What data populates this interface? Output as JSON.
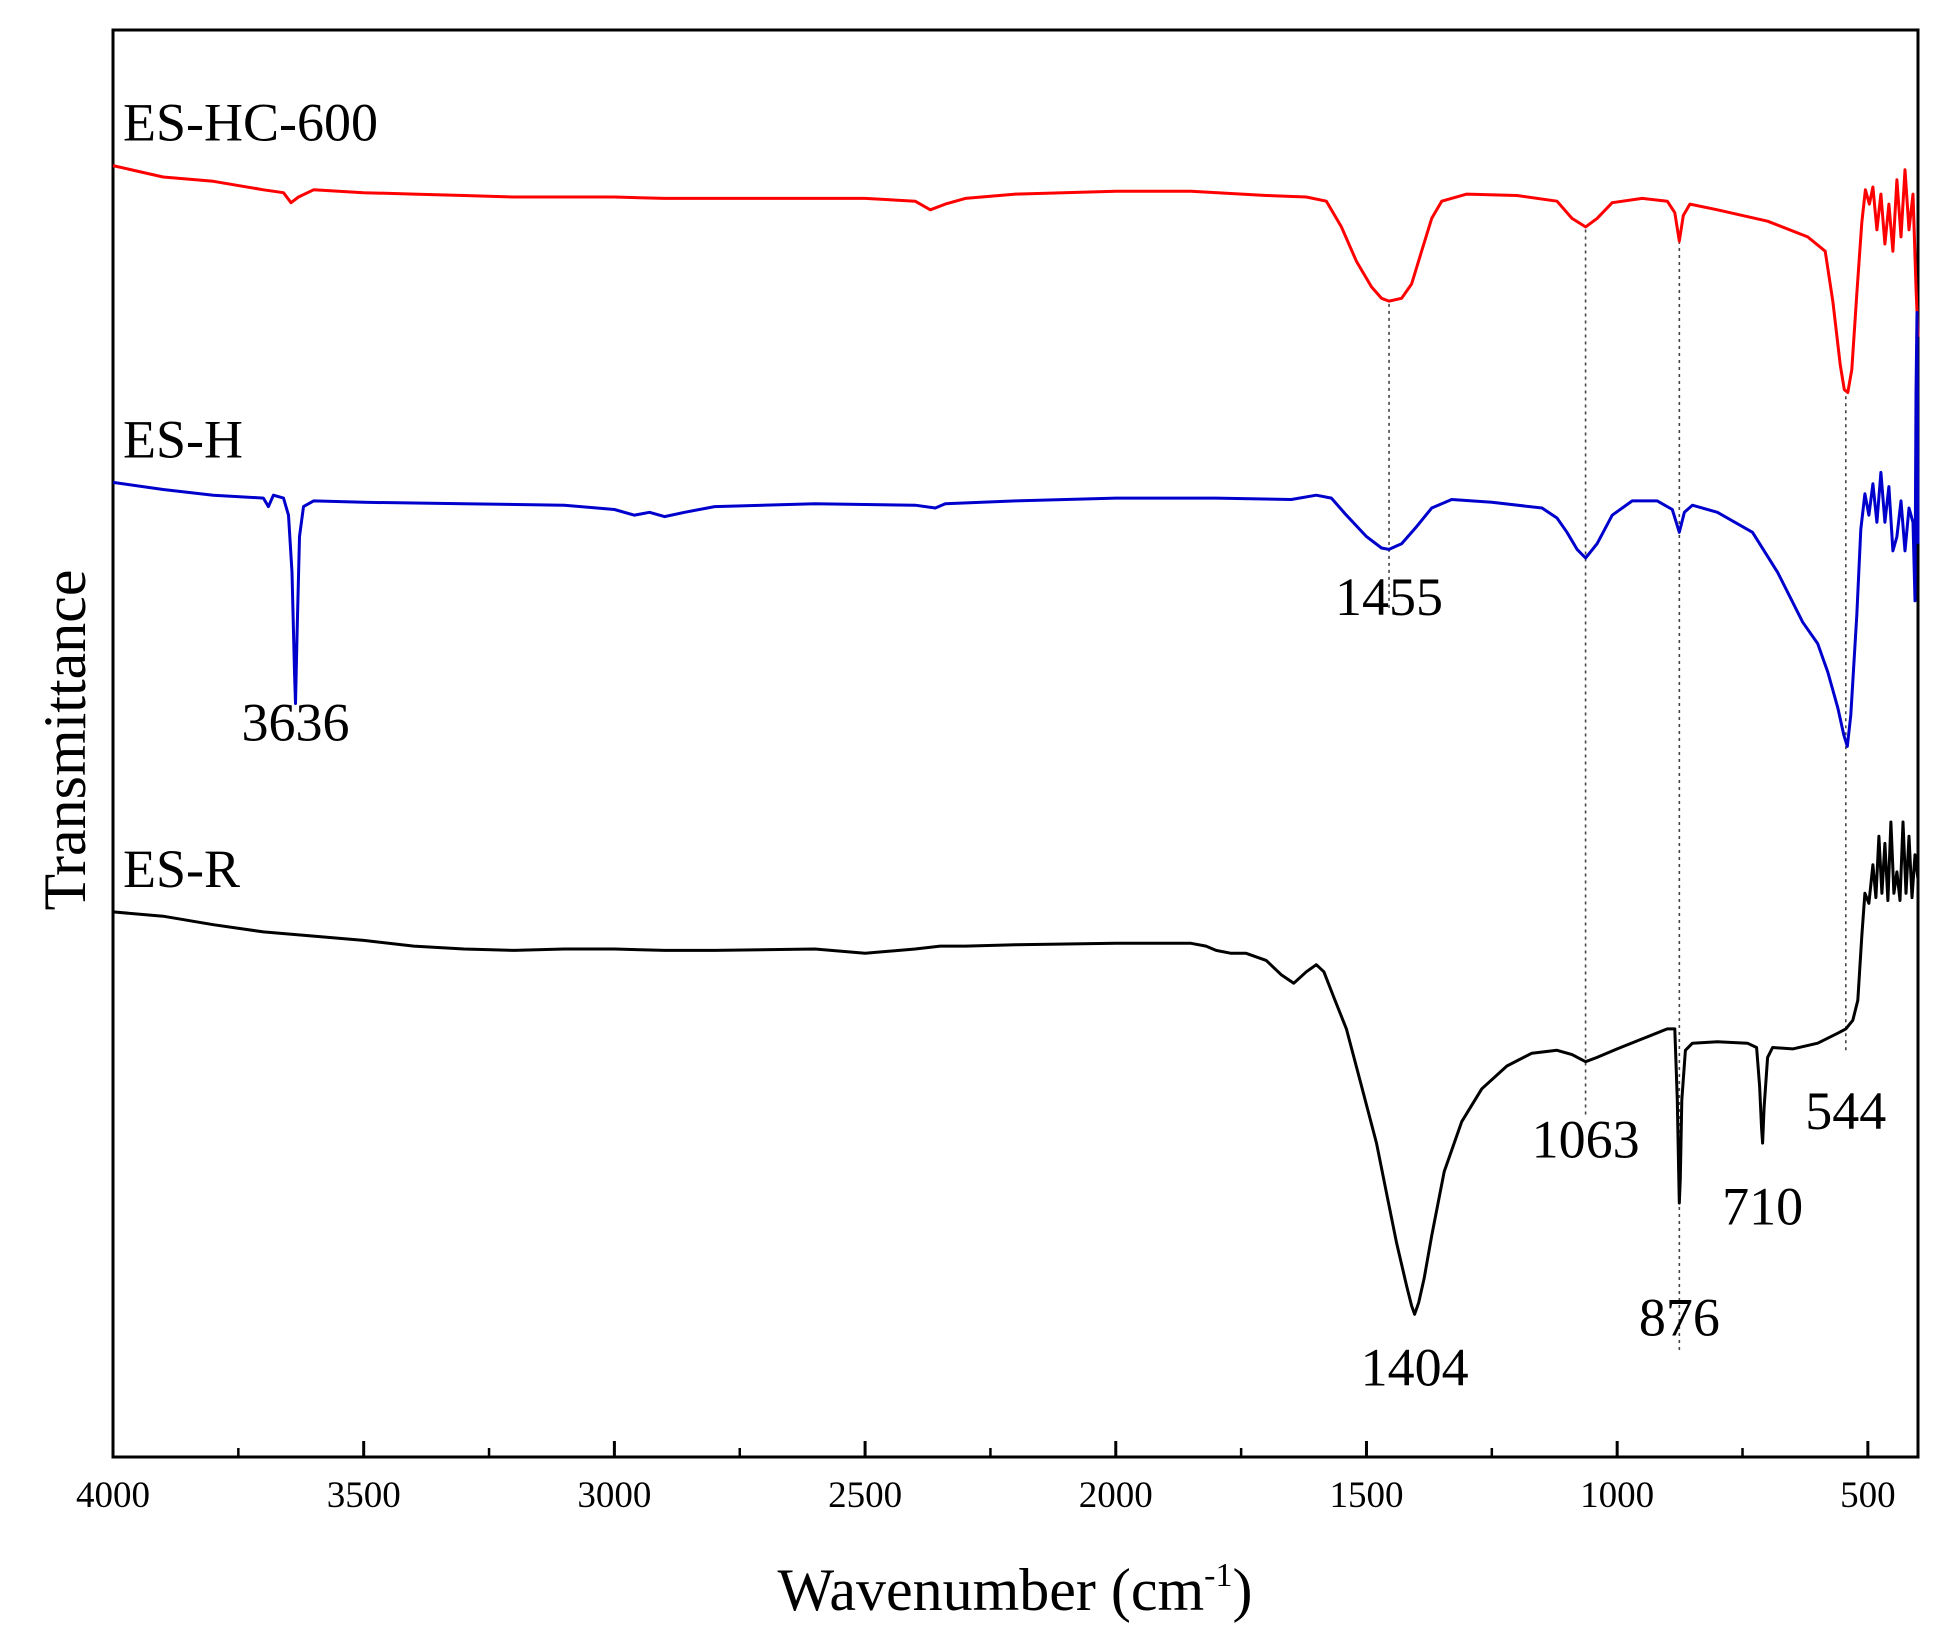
{
  "chart_data": {
    "type": "line",
    "title": "",
    "xlabel": "Wavenumber (cm",
    "xlabel_sup": "-1",
    "xlabel_close": ")",
    "ylabel": "Transmittance",
    "xlim": [
      4000,
      400
    ],
    "x_reversed": true,
    "xticks": [
      4000,
      3500,
      3000,
      2500,
      2000,
      1500,
      1000,
      500
    ],
    "xtick_labels": [
      "4000",
      "3500",
      "3000",
      "2500",
      "2000",
      "1500",
      "1000",
      "500"
    ],
    "minor_xticks": [
      3750,
      3250,
      2750,
      2250,
      1750,
      1250,
      750
    ],
    "y_units": "arbitrary (offset, stacked)",
    "ylim": [
      0,
      10
    ],
    "grid": false,
    "legend": "none",
    "series": [
      {
        "name": "ES-HC-600",
        "label": "ES-HC-600",
        "color": "#ff0000",
        "points": [
          [
            4000,
            9.05
          ],
          [
            3900,
            8.97
          ],
          [
            3800,
            8.94
          ],
          [
            3700,
            8.88
          ],
          [
            3660,
            8.86
          ],
          [
            3645,
            8.79
          ],
          [
            3630,
            8.83
          ],
          [
            3600,
            8.88
          ],
          [
            3500,
            8.86
          ],
          [
            3400,
            8.85
          ],
          [
            3300,
            8.84
          ],
          [
            3200,
            8.83
          ],
          [
            3000,
            8.83
          ],
          [
            2900,
            8.82
          ],
          [
            2700,
            8.82
          ],
          [
            2500,
            8.82
          ],
          [
            2400,
            8.8
          ],
          [
            2370,
            8.74
          ],
          [
            2340,
            8.78
          ],
          [
            2300,
            8.82
          ],
          [
            2200,
            8.85
          ],
          [
            2000,
            8.87
          ],
          [
            1850,
            8.87
          ],
          [
            1700,
            8.84
          ],
          [
            1620,
            8.83
          ],
          [
            1580,
            8.8
          ],
          [
            1550,
            8.62
          ],
          [
            1520,
            8.38
          ],
          [
            1490,
            8.2
          ],
          [
            1470,
            8.12
          ],
          [
            1455,
            8.1
          ],
          [
            1430,
            8.12
          ],
          [
            1410,
            8.22
          ],
          [
            1390,
            8.45
          ],
          [
            1370,
            8.68
          ],
          [
            1350,
            8.8
          ],
          [
            1300,
            8.85
          ],
          [
            1200,
            8.84
          ],
          [
            1120,
            8.8
          ],
          [
            1090,
            8.68
          ],
          [
            1063,
            8.62
          ],
          [
            1040,
            8.68
          ],
          [
            1010,
            8.79
          ],
          [
            950,
            8.82
          ],
          [
            900,
            8.8
          ],
          [
            885,
            8.72
          ],
          [
            876,
            8.52
          ],
          [
            868,
            8.7
          ],
          [
            855,
            8.78
          ],
          [
            800,
            8.74
          ],
          [
            700,
            8.66
          ],
          [
            620,
            8.55
          ],
          [
            585,
            8.45
          ],
          [
            570,
            8.1
          ],
          [
            555,
            7.65
          ],
          [
            547,
            7.48
          ],
          [
            540,
            7.46
          ],
          [
            532,
            7.62
          ],
          [
            522,
            8.15
          ],
          [
            512,
            8.65
          ],
          [
            505,
            8.88
          ],
          [
            497,
            8.78
          ],
          [
            490,
            8.9
          ],
          [
            482,
            8.6
          ],
          [
            474,
            8.85
          ],
          [
            466,
            8.5
          ],
          [
            458,
            8.78
          ],
          [
            450,
            8.45
          ],
          [
            442,
            8.95
          ],
          [
            434,
            8.55
          ],
          [
            426,
            9.02
          ],
          [
            418,
            8.6
          ],
          [
            410,
            8.85
          ],
          [
            404,
            8.2
          ],
          [
            400,
            7.85
          ]
        ]
      },
      {
        "name": "ES-H",
        "label": "ES-H",
        "color": "#0000cc",
        "points": [
          [
            4000,
            6.83
          ],
          [
            3900,
            6.78
          ],
          [
            3800,
            6.74
          ],
          [
            3700,
            6.72
          ],
          [
            3690,
            6.66
          ],
          [
            3680,
            6.74
          ],
          [
            3660,
            6.72
          ],
          [
            3650,
            6.6
          ],
          [
            3643,
            6.2
          ],
          [
            3638,
            5.5
          ],
          [
            3636,
            5.28
          ],
          [
            3633,
            5.75
          ],
          [
            3628,
            6.45
          ],
          [
            3620,
            6.66
          ],
          [
            3600,
            6.7
          ],
          [
            3500,
            6.69
          ],
          [
            3300,
            6.68
          ],
          [
            3100,
            6.67
          ],
          [
            3000,
            6.64
          ],
          [
            2960,
            6.6
          ],
          [
            2930,
            6.62
          ],
          [
            2900,
            6.59
          ],
          [
            2860,
            6.62
          ],
          [
            2800,
            6.66
          ],
          [
            2600,
            6.68
          ],
          [
            2400,
            6.67
          ],
          [
            2360,
            6.65
          ],
          [
            2340,
            6.68
          ],
          [
            2200,
            6.7
          ],
          [
            2000,
            6.72
          ],
          [
            1800,
            6.72
          ],
          [
            1650,
            6.71
          ],
          [
            1600,
            6.74
          ],
          [
            1570,
            6.72
          ],
          [
            1540,
            6.6
          ],
          [
            1500,
            6.45
          ],
          [
            1470,
            6.37
          ],
          [
            1455,
            6.36
          ],
          [
            1430,
            6.4
          ],
          [
            1400,
            6.52
          ],
          [
            1370,
            6.65
          ],
          [
            1330,
            6.71
          ],
          [
            1250,
            6.69
          ],
          [
            1150,
            6.65
          ],
          [
            1120,
            6.58
          ],
          [
            1100,
            6.48
          ],
          [
            1080,
            6.36
          ],
          [
            1063,
            6.3
          ],
          [
            1040,
            6.4
          ],
          [
            1010,
            6.6
          ],
          [
            970,
            6.7
          ],
          [
            920,
            6.7
          ],
          [
            890,
            6.64
          ],
          [
            876,
            6.48
          ],
          [
            866,
            6.62
          ],
          [
            850,
            6.67
          ],
          [
            800,
            6.62
          ],
          [
            730,
            6.48
          ],
          [
            680,
            6.2
          ],
          [
            630,
            5.85
          ],
          [
            600,
            5.7
          ],
          [
            580,
            5.5
          ],
          [
            560,
            5.25
          ],
          [
            548,
            5.06
          ],
          [
            541,
            4.98
          ],
          [
            534,
            5.2
          ],
          [
            522,
            5.9
          ],
          [
            514,
            6.5
          ],
          [
            506,
            6.75
          ],
          [
            498,
            6.6
          ],
          [
            490,
            6.82
          ],
          [
            482,
            6.55
          ],
          [
            474,
            6.9
          ],
          [
            466,
            6.55
          ],
          [
            458,
            6.8
          ],
          [
            450,
            6.35
          ],
          [
            442,
            6.45
          ],
          [
            434,
            6.7
          ],
          [
            426,
            6.35
          ],
          [
            418,
            6.65
          ],
          [
            410,
            6.55
          ],
          [
            406,
            6.0
          ],
          [
            404,
            7.45
          ],
          [
            402,
            8.02
          ],
          [
            400,
            6.4
          ]
        ]
      },
      {
        "name": "ES-R",
        "label": "ES-R",
        "color": "#000000",
        "points": [
          [
            4000,
            3.82
          ],
          [
            3900,
            3.79
          ],
          [
            3800,
            3.73
          ],
          [
            3700,
            3.68
          ],
          [
            3600,
            3.65
          ],
          [
            3500,
            3.62
          ],
          [
            3400,
            3.58
          ],
          [
            3300,
            3.56
          ],
          [
            3200,
            3.55
          ],
          [
            3100,
            3.56
          ],
          [
            3000,
            3.56
          ],
          [
            2900,
            3.55
          ],
          [
            2800,
            3.55
          ],
          [
            2600,
            3.56
          ],
          [
            2500,
            3.53
          ],
          [
            2400,
            3.56
          ],
          [
            2350,
            3.58
          ],
          [
            2300,
            3.58
          ],
          [
            2200,
            3.59
          ],
          [
            2000,
            3.6
          ],
          [
            1850,
            3.6
          ],
          [
            1820,
            3.58
          ],
          [
            1800,
            3.55
          ],
          [
            1770,
            3.53
          ],
          [
            1740,
            3.53
          ],
          [
            1700,
            3.48
          ],
          [
            1670,
            3.38
          ],
          [
            1645,
            3.32
          ],
          [
            1620,
            3.4
          ],
          [
            1600,
            3.45
          ],
          [
            1585,
            3.4
          ],
          [
            1565,
            3.22
          ],
          [
            1540,
            3.0
          ],
          [
            1510,
            2.6
          ],
          [
            1480,
            2.2
          ],
          [
            1460,
            1.85
          ],
          [
            1440,
            1.5
          ],
          [
            1420,
            1.2
          ],
          [
            1410,
            1.06
          ],
          [
            1404,
            1.0
          ],
          [
            1396,
            1.08
          ],
          [
            1385,
            1.25
          ],
          [
            1370,
            1.55
          ],
          [
            1345,
            2.0
          ],
          [
            1310,
            2.35
          ],
          [
            1270,
            2.58
          ],
          [
            1220,
            2.74
          ],
          [
            1170,
            2.83
          ],
          [
            1120,
            2.85
          ],
          [
            1090,
            2.82
          ],
          [
            1063,
            2.77
          ],
          [
            1040,
            2.8
          ],
          [
            1000,
            2.86
          ],
          [
            950,
            2.93
          ],
          [
            900,
            3.0
          ],
          [
            885,
            3.0
          ],
          [
            880,
            2.5
          ],
          [
            877,
            1.95
          ],
          [
            876,
            1.78
          ],
          [
            874,
            1.95
          ],
          [
            871,
            2.5
          ],
          [
            864,
            2.85
          ],
          [
            850,
            2.9
          ],
          [
            800,
            2.91
          ],
          [
            740,
            2.9
          ],
          [
            722,
            2.87
          ],
          [
            716,
            2.6
          ],
          [
            712,
            2.3
          ],
          [
            710,
            2.2
          ],
          [
            707,
            2.45
          ],
          [
            700,
            2.8
          ],
          [
            690,
            2.87
          ],
          [
            650,
            2.86
          ],
          [
            600,
            2.9
          ],
          [
            560,
            2.97
          ],
          [
            544,
            3.0
          ],
          [
            530,
            3.06
          ],
          [
            520,
            3.2
          ],
          [
            512,
            3.65
          ],
          [
            506,
            3.95
          ],
          [
            498,
            3.88
          ],
          [
            490,
            4.15
          ],
          [
            484,
            3.92
          ],
          [
            478,
            4.35
          ],
          [
            472,
            3.95
          ],
          [
            466,
            4.3
          ],
          [
            460,
            3.9
          ],
          [
            454,
            4.45
          ],
          [
            448,
            3.95
          ],
          [
            442,
            4.1
          ],
          [
            436,
            3.9
          ],
          [
            430,
            4.45
          ],
          [
            424,
            3.95
          ],
          [
            418,
            4.35
          ],
          [
            412,
            3.92
          ],
          [
            406,
            4.22
          ],
          [
            400,
            4.05
          ]
        ]
      }
    ],
    "peak_labels": [
      {
        "text": "3636",
        "x": 3636,
        "y": 5.02
      },
      {
        "text": "1455",
        "x": 1455,
        "y": 5.9
      },
      {
        "text": "1404",
        "x": 1404,
        "y": 0.5
      },
      {
        "text": "1063",
        "x": 1063,
        "y": 2.1
      },
      {
        "text": "876",
        "x": 876,
        "y": 0.85
      },
      {
        "text": "710",
        "x": 710,
        "y": 1.63
      },
      {
        "text": "544",
        "x": 544,
        "y": 2.3
      }
    ],
    "reference_lines": [
      {
        "x": 1455,
        "y_from": 5.95,
        "y_to": 8.1
      },
      {
        "x": 1063,
        "y_from": 2.4,
        "y_to": 8.62
      },
      {
        "x": 876,
        "y_from": 0.75,
        "y_to": 8.52
      },
      {
        "x": 544,
        "y_from": 2.85,
        "y_to": 7.46
      }
    ]
  }
}
